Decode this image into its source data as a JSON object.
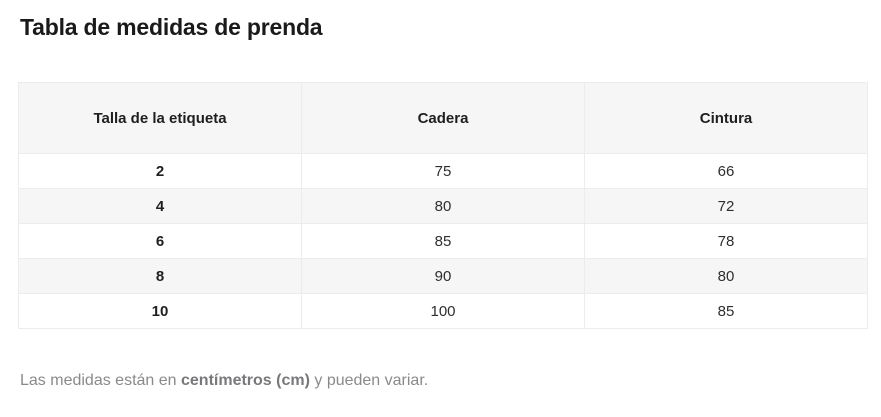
{
  "page": {
    "title": "Tabla de medidas de prenda"
  },
  "table": {
    "columns": [
      "Talla de la etiqueta",
      "Cadera",
      "Cintura"
    ],
    "rows": [
      [
        "2",
        "75",
        "66"
      ],
      [
        "4",
        "80",
        "72"
      ],
      [
        "6",
        "85",
        "78"
      ],
      [
        "8",
        "90",
        "80"
      ],
      [
        "10",
        "100",
        "85"
      ]
    ]
  },
  "footnote": {
    "prefix": "Las medidas están en ",
    "bold": "centímetros (cm)",
    "suffix": " y pueden variar."
  },
  "colors": {
    "header_bg": "#f6f6f6",
    "row_alt_bg": "#f6f6f6",
    "grid_border": "#ececec",
    "title_text": "#1a1a1a",
    "body_text": "#2e2e2e",
    "footnote_text": "#8a8a8e"
  }
}
